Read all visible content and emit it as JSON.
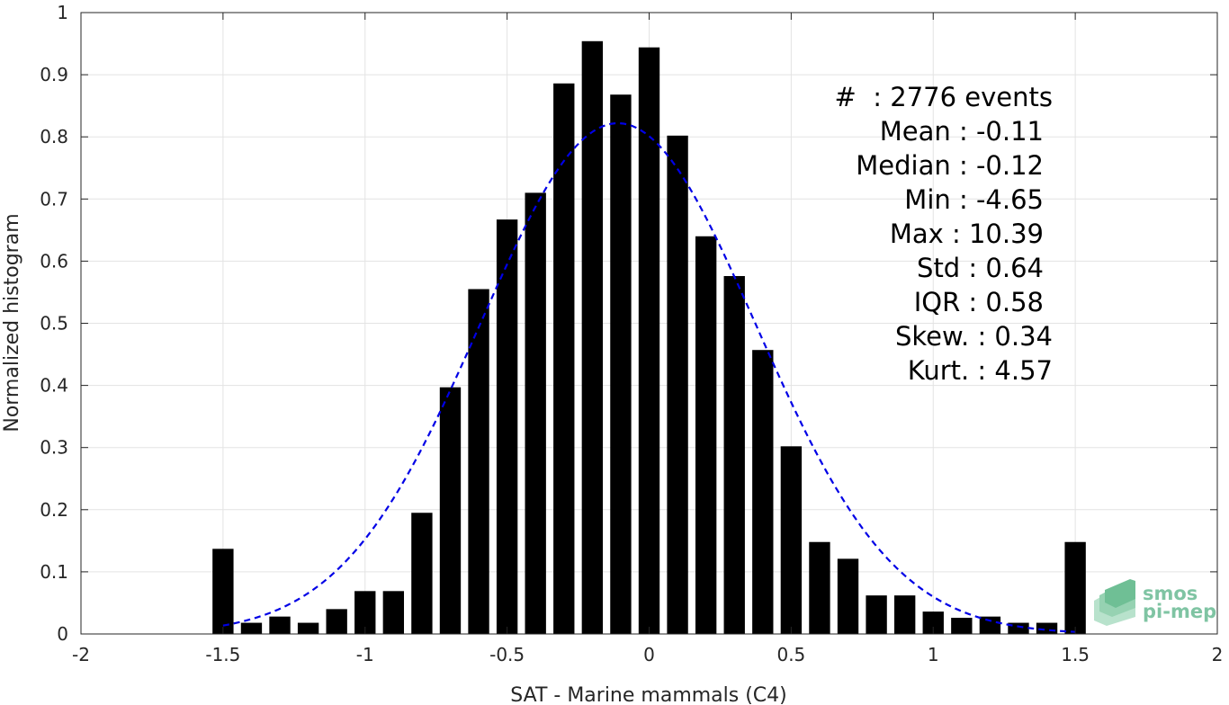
{
  "chart_data": {
    "type": "bar",
    "xlabel": "SAT - Marine mammals (C4)",
    "ylabel": "Normalized histogram",
    "xlim": [
      -2,
      2
    ],
    "ylim": [
      0,
      1
    ],
    "xticks": [
      "-2",
      "-1.5",
      "-1",
      "-0.5",
      "0",
      "0.5",
      "1",
      "1.5",
      "2"
    ],
    "yticks": [
      "0",
      "0.1",
      "0.2",
      "0.3",
      "0.4",
      "0.5",
      "0.6",
      "0.7",
      "0.8",
      "0.9",
      "1"
    ],
    "grid": true,
    "bin_width": 0.1,
    "x": [
      -1.5,
      -1.4,
      -1.3,
      -1.2,
      -1.1,
      -1.0,
      -0.9,
      -0.8,
      -0.7,
      -0.6,
      -0.5,
      -0.4,
      -0.3,
      -0.2,
      -0.1,
      0.0,
      0.1,
      0.2,
      0.3,
      0.4,
      0.5,
      0.6,
      0.7,
      0.8,
      0.9,
      1.0,
      1.1,
      1.2,
      1.3,
      1.4,
      1.5
    ],
    "values": [
      0.137,
      0.018,
      0.028,
      0.018,
      0.04,
      0.069,
      0.069,
      0.195,
      0.397,
      0.555,
      0.667,
      0.71,
      0.886,
      0.954,
      0.868,
      0.944,
      0.802,
      0.64,
      0.576,
      0.457,
      0.302,
      0.148,
      0.121,
      0.062,
      0.062,
      0.036,
      0.026,
      0.028,
      0.018,
      0.018,
      0.148
    ],
    "fit": {
      "type": "gaussian",
      "mean": -0.11,
      "std": 0.485,
      "peak": 0.822,
      "x_range": [
        -1.5,
        1.5
      ],
      "color": "#0000e6",
      "style": "dashed"
    },
    "bar_color": "#000000"
  },
  "stats": {
    "events": "#  : 2776 events",
    "mean": "Mean : -0.11",
    "median": "Median : -0.12",
    "min": "Min : -4.65",
    "max": "Max : 10.39",
    "std": "Std : 0.64",
    "iqr": "IQR : 0.58",
    "skew": "Skew. : 0.34",
    "kurt": "Kurt. : 4.57"
  },
  "logo": {
    "line1": "smos",
    "line2": "pi-mep"
  }
}
